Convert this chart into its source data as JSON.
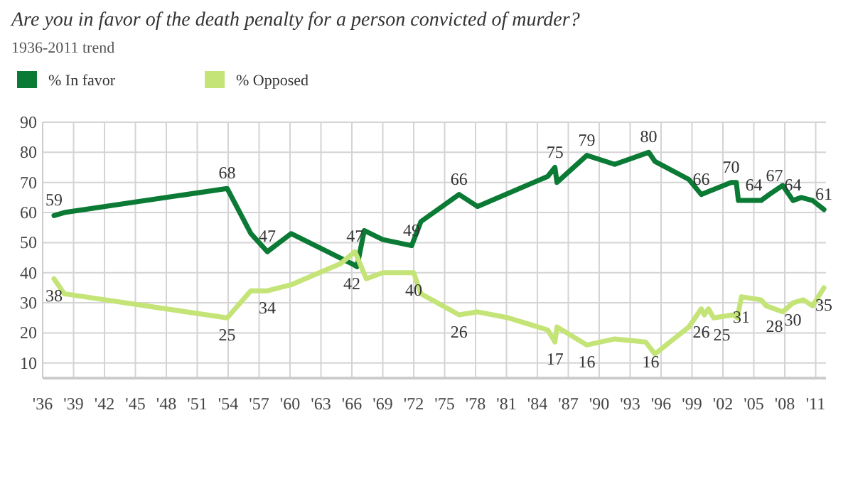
{
  "chart_data": {
    "type": "line",
    "title": "Are you in favor of the death penalty for a person convicted of murder?",
    "subtitle": "1936-2011 trend",
    "series": [
      {
        "name": "% In favor",
        "color": "#0b7a35",
        "x": [
          1937.1,
          1938.1,
          1953.9,
          1956.2,
          1957.8,
          1960.1,
          1966.0,
          1966.5,
          1967.2,
          1969.0,
          1971.8,
          1972.7,
          1976.4,
          1978.2,
          1985.0,
          1985.7,
          1985.9,
          1988.8,
          1991.5,
          1994.8,
          1995.4,
          1998.7,
          1999.9,
          2000.6,
          2002.8,
          2003.3,
          2003.5,
          2005.7,
          2006.5,
          2007.8,
          2008.8,
          2009.6,
          2010.7,
          2011.8
        ],
        "values": [
          59,
          60,
          68,
          53,
          47,
          53,
          43,
          42,
          54,
          51,
          49,
          57,
          66,
          62,
          72,
          75,
          70,
          79,
          76,
          80,
          77,
          71,
          66,
          67,
          70,
          70,
          64,
          64,
          66,
          69,
          64,
          65,
          64,
          61
        ]
      },
      {
        "name": "% Opposed",
        "color": "#c5e478",
        "x": [
          1937.1,
          1938.1,
          1953.9,
          1956.2,
          1957.8,
          1960.1,
          1964.9,
          1966.3,
          1967.4,
          1969.0,
          1972.0,
          1972.7,
          1976.4,
          1978.2,
          1981.2,
          1985.0,
          1985.7,
          1985.9,
          1988.8,
          1991.5,
          1994.5,
          1995.4,
          1998.7,
          1999.9,
          2000.2,
          2000.6,
          2001.1,
          2003.0,
          2003.4,
          2003.8,
          2005.7,
          2006.2,
          2007.8,
          2008.8,
          2009.8,
          2010.7,
          2011.8
        ],
        "values": [
          38,
          33,
          25,
          34,
          34,
          36,
          43,
          47,
          38,
          40,
          40,
          33,
          26,
          27,
          25,
          21,
          17,
          22,
          16,
          18,
          17,
          13,
          22,
          28,
          26,
          28,
          25,
          26,
          25,
          32,
          31,
          29,
          27,
          30,
          31,
          29,
          35
        ]
      }
    ],
    "xlim": [
      1936,
      2012
    ],
    "xticks": [
      {
        "value": 1936,
        "label": "'36"
      },
      {
        "value": 1939,
        "label": "'39"
      },
      {
        "value": 1942,
        "label": "'42"
      },
      {
        "value": 1945,
        "label": "'45"
      },
      {
        "value": 1948,
        "label": "'48"
      },
      {
        "value": 1951,
        "label": "'51"
      },
      {
        "value": 1954,
        "label": "'54"
      },
      {
        "value": 1957,
        "label": "'57"
      },
      {
        "value": 1960,
        "label": "'60"
      },
      {
        "value": 1963,
        "label": "'63"
      },
      {
        "value": 1966,
        "label": "'66"
      },
      {
        "value": 1969,
        "label": "'69"
      },
      {
        "value": 1972,
        "label": "'72"
      },
      {
        "value": 1975,
        "label": "'75"
      },
      {
        "value": 1978,
        "label": "'78"
      },
      {
        "value": 1981,
        "label": "'81"
      },
      {
        "value": 1984,
        "label": "'84"
      },
      {
        "value": 1987,
        "label": "'87"
      },
      {
        "value": 1990,
        "label": "'90"
      },
      {
        "value": 1993,
        "label": "'93"
      },
      {
        "value": 1996,
        "label": "'96"
      },
      {
        "value": 1999,
        "label": "'99"
      },
      {
        "value": 2002,
        "label": "'02"
      },
      {
        "value": 2005,
        "label": "'05"
      },
      {
        "value": 2008,
        "label": "'08"
      },
      {
        "value": 2011,
        "label": "'11"
      }
    ],
    "ylim": [
      5,
      90
    ],
    "yticks": [
      10,
      20,
      30,
      40,
      50,
      60,
      70,
      80,
      90
    ],
    "grid": true,
    "legend": "top left",
    "marker": "none",
    "line_style": "solid",
    "annotations": [
      {
        "text": "59",
        "x": 1937.1,
        "y": 59
      },
      {
        "text": "68",
        "x": 1953.9,
        "y": 68
      },
      {
        "text": "47",
        "x": 1957.8,
        "y": 47
      },
      {
        "text": "42",
        "x": 1966.0,
        "y": 42
      },
      {
        "text": "47",
        "x": 1966.3,
        "y": 47
      },
      {
        "text": "49",
        "x": 1971.8,
        "y": 49
      },
      {
        "text": "66",
        "x": 1976.4,
        "y": 66
      },
      {
        "text": "75",
        "x": 1985.7,
        "y": 75
      },
      {
        "text": "79",
        "x": 1988.8,
        "y": 79
      },
      {
        "text": "80",
        "x": 1994.8,
        "y": 80
      },
      {
        "text": "66",
        "x": 1999.9,
        "y": 66
      },
      {
        "text": "70",
        "x": 2002.8,
        "y": 70
      },
      {
        "text": "64",
        "x": 2005.0,
        "y": 64
      },
      {
        "text": "67",
        "x": 2007.0,
        "y": 67
      },
      {
        "text": "64",
        "x": 2008.8,
        "y": 64
      },
      {
        "text": "61",
        "x": 2011.8,
        "y": 61
      },
      {
        "text": "38",
        "x": 1937.1,
        "y": 38
      },
      {
        "text": "25",
        "x": 1953.9,
        "y": 25
      },
      {
        "text": "34",
        "x": 1957.8,
        "y": 34
      },
      {
        "text": "40",
        "x": 1972.0,
        "y": 40
      },
      {
        "text": "26",
        "x": 1976.4,
        "y": 26
      },
      {
        "text": "17",
        "x": 1985.7,
        "y": 17
      },
      {
        "text": "16",
        "x": 1988.8,
        "y": 16
      },
      {
        "text": "16",
        "x": 1995.0,
        "y": 16
      },
      {
        "text": "26",
        "x": 1999.9,
        "y": 26
      },
      {
        "text": "25",
        "x": 2001.9,
        "y": 25
      },
      {
        "text": "31",
        "x": 2003.8,
        "y": 31
      },
      {
        "text": "28",
        "x": 2007.0,
        "y": 28
      },
      {
        "text": "30",
        "x": 2008.8,
        "y": 30
      },
      {
        "text": "35",
        "x": 2011.8,
        "y": 35
      }
    ]
  }
}
